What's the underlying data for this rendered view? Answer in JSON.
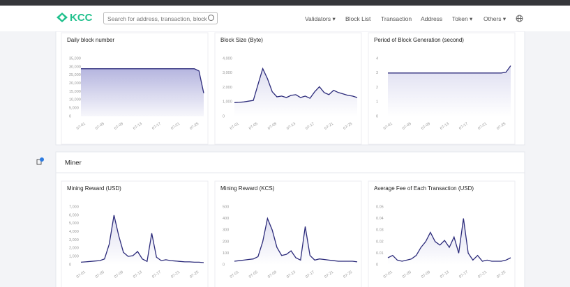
{
  "header": {
    "logo": "KCC",
    "search_placeholder": "Search for address, transaction, block",
    "nav": [
      "Validators",
      "Block List",
      "Transaction",
      "Address",
      "Token",
      "Others"
    ]
  },
  "miner_section": {
    "title": "Miner"
  },
  "chart_data": [
    {
      "type": "area",
      "title": "Daily block number",
      "color": "#2b2a7a",
      "categories": [
        "07-01",
        null,
        null,
        null,
        "07-05",
        null,
        null,
        null,
        "07-09",
        null,
        null,
        null,
        "07-13",
        null,
        null,
        null,
        "07-17",
        null,
        null,
        null,
        "07-21",
        null,
        null,
        null,
        "07-25",
        null,
        null
      ],
      "values": [
        28800,
        28800,
        28800,
        28800,
        28800,
        28800,
        28800,
        28800,
        28800,
        28800,
        28800,
        28800,
        28800,
        28800,
        28800,
        28800,
        28800,
        28800,
        28800,
        28800,
        28800,
        28800,
        28800,
        28800,
        28800,
        27500,
        14000
      ],
      "ylim": [
        0,
        35000
      ],
      "yticks": [
        0,
        {
          "value": 5000,
          "label": "5,000"
        },
        {
          "value": 10000,
          "label": "10,000"
        },
        {
          "value": 15000,
          "label": "15,000"
        },
        {
          "value": 20000,
          "label": "20,000"
        },
        {
          "value": 25000,
          "label": "25,000"
        },
        {
          "value": 30000,
          "label": "30,000"
        },
        {
          "value": 35000,
          "label": "35,000"
        }
      ]
    },
    {
      "type": "area",
      "title": "Block Size (Byte)",
      "color": "#2b2a7a",
      "categories": [
        "07-01",
        null,
        null,
        null,
        "07-05",
        null,
        null,
        null,
        "07-09",
        null,
        null,
        null,
        "07-13",
        null,
        null,
        null,
        "07-17",
        null,
        null,
        null,
        "07-21",
        null,
        null,
        null,
        "07-25",
        null,
        null
      ],
      "values": [
        950,
        970,
        1000,
        1050,
        1100,
        2200,
        3300,
        2600,
        1700,
        1350,
        1400,
        1300,
        1450,
        1500,
        1300,
        1400,
        1250,
        1700,
        2050,
        1650,
        1500,
        1800,
        1650,
        1550,
        1450,
        1400,
        1300
      ],
      "ylim": [
        0,
        4000
      ],
      "yticks": [
        0,
        {
          "value": 1000,
          "label": "1,000"
        },
        {
          "value": 2000,
          "label": "2,000"
        },
        {
          "value": 3000,
          "label": "3,000"
        },
        {
          "value": 4000,
          "label": "4,000"
        }
      ]
    },
    {
      "type": "area",
      "title": "Period of Block Generation (second)",
      "color": "#2b2a7a",
      "categories": [
        "07-01",
        null,
        null,
        null,
        "07-05",
        null,
        null,
        null,
        "07-09",
        null,
        null,
        null,
        "07-13",
        null,
        null,
        null,
        "07-17",
        null,
        null,
        null,
        "07-21",
        null,
        null,
        null,
        "07-25",
        null,
        null
      ],
      "values": [
        3,
        3,
        3,
        3,
        3,
        3,
        3,
        3,
        3,
        3,
        3,
        3,
        3,
        3,
        3,
        3,
        3,
        3,
        3,
        3,
        3,
        3,
        3,
        3,
        3,
        3.05,
        3.5
      ],
      "ylim": [
        0,
        4
      ],
      "yticks": [
        0,
        1,
        2,
        3,
        4
      ]
    },
    {
      "type": "area",
      "title": "Mining Reward (USD)",
      "color": "#2b2a7a",
      "categories": [
        "07-01",
        null,
        null,
        null,
        "07-05",
        null,
        null,
        null,
        "07-09",
        null,
        null,
        null,
        "07-13",
        null,
        null,
        null,
        "07-17",
        null,
        null,
        null,
        "07-21",
        null,
        null,
        null,
        "07-25",
        null,
        null
      ],
      "values": [
        300,
        350,
        400,
        450,
        500,
        700,
        2500,
        6000,
        3500,
        1500,
        1000,
        1100,
        1600,
        700,
        400,
        3800,
        900,
        500,
        600,
        500,
        450,
        400,
        350,
        350,
        300,
        300,
        250
      ],
      "ylim": [
        0,
        7000
      ],
      "yticks": [
        0,
        {
          "value": 1000,
          "label": "1,000"
        },
        {
          "value": 2000,
          "label": "2,000"
        },
        {
          "value": 3000,
          "label": "3,000"
        },
        {
          "value": 4000,
          "label": "4,000"
        },
        {
          "value": 5000,
          "label": "5,000"
        },
        {
          "value": 6000,
          "label": "6,000"
        },
        {
          "value": 7000,
          "label": "7,000"
        }
      ]
    },
    {
      "type": "area",
      "title": "Mining Reward (KCS)",
      "color": "#2b2a7a",
      "categories": [
        "07-01",
        null,
        null,
        null,
        "07-05",
        null,
        null,
        null,
        "07-09",
        null,
        null,
        null,
        "07-13",
        null,
        null,
        null,
        "07-17",
        null,
        null,
        null,
        "07-21",
        null,
        null,
        null,
        "07-25",
        null,
        null
      ],
      "values": [
        30,
        35,
        40,
        45,
        50,
        70,
        200,
        400,
        300,
        150,
        80,
        90,
        120,
        60,
        40,
        330,
        80,
        40,
        50,
        45,
        40,
        35,
        30,
        30,
        30,
        30,
        25
      ],
      "ylim": [
        0,
        500
      ],
      "yticks": [
        0,
        100,
        200,
        300,
        400,
        500
      ]
    },
    {
      "type": "area",
      "title": "Average Fee of Each Transaction (USD)",
      "color": "#2b2a7a",
      "categories": [
        "07-01",
        null,
        null,
        null,
        "07-05",
        null,
        null,
        null,
        "07-09",
        null,
        null,
        null,
        "07-13",
        null,
        null,
        null,
        "07-17",
        null,
        null,
        null,
        "07-21",
        null,
        null,
        null,
        "07-25",
        null,
        null
      ],
      "values": [
        0.006,
        0.008,
        0.004,
        0.003,
        0.004,
        0.005,
        0.008,
        0.015,
        0.02,
        0.028,
        0.02,
        0.017,
        0.021,
        0.015,
        0.024,
        0.01,
        0.04,
        0.01,
        0.004,
        0.008,
        0.003,
        0.004,
        0.003,
        0.003,
        0.003,
        0.004,
        0.006
      ],
      "ylim": [
        0,
        0.05
      ],
      "yticks": [
        0,
        0.01,
        0.02,
        0.03,
        0.04,
        0.05
      ]
    }
  ]
}
